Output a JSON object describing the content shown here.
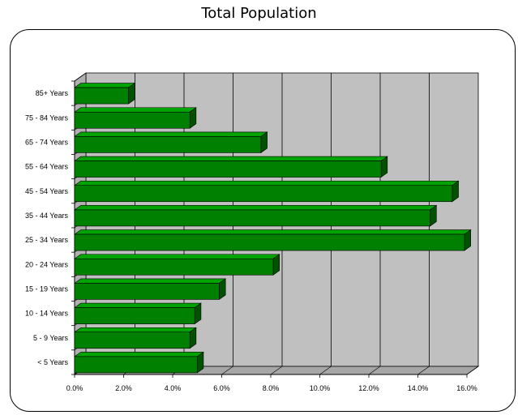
{
  "chart_data": {
    "type": "bar",
    "orientation": "horizontal",
    "style": "3d",
    "title": "Total Population",
    "xlabel": "",
    "ylabel": "",
    "categories": [
      "< 5 Years",
      "5 - 9 Years",
      "10 - 14 Years",
      "15 - 19 Years",
      "20 - 24 Years",
      "25 - 34 Years",
      "35 - 44 Years",
      "45 - 54 Years",
      "55 - 64 Years",
      "65 - 74 Years",
      "75 - 84 Years",
      "85+ Years"
    ],
    "values": [
      5.0,
      4.7,
      4.9,
      5.9,
      8.1,
      15.9,
      14.5,
      15.4,
      12.5,
      7.6,
      4.7,
      2.2
    ],
    "xlim": [
      0,
      16
    ],
    "x_ticks": [
      "0.0%",
      "2.0%",
      "4.0%",
      "6.0%",
      "8.0%",
      "10.0%",
      "12.0%",
      "14.0%",
      "16.0%"
    ],
    "grid": true,
    "legend": "none",
    "colors": {
      "bar_front": "#008000",
      "bar_top": "#00a400",
      "bar_side": "#005200",
      "plot_wall": "#c0c0c0",
      "plot_floor": "#a6a6a6"
    }
  }
}
